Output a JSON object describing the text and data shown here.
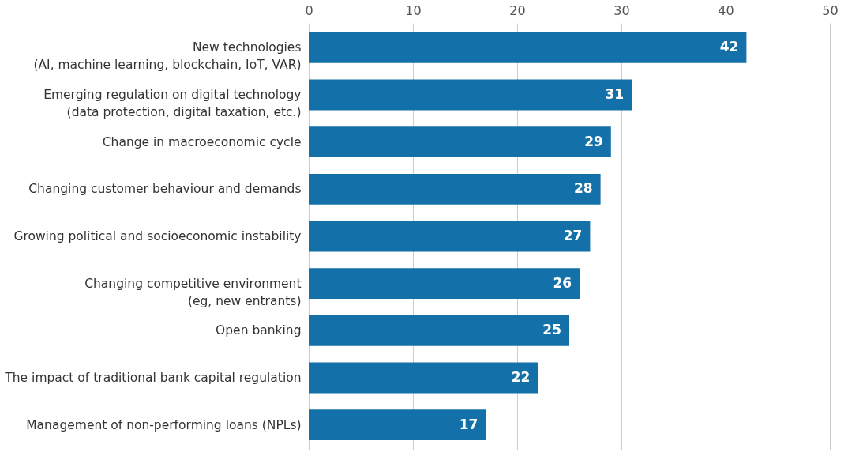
{
  "chart_data": {
    "type": "bar",
    "orientation": "horizontal",
    "categories": [
      "New technologies\n(AI, machine learning, blockchain, IoT, VAR)",
      "Emerging regulation on digital technology\n(data protection, digital taxation, etc.)",
      "Change in macroeconomic cycle",
      "Changing customer behaviour and demands",
      "Growing political and socioeconomic instability",
      "Changing competitive environment\n(eg, new entrants)",
      "Open banking",
      "The impact of traditional bank capital regulation",
      "Management of non-performing loans (NPLs)"
    ],
    "values": [
      42,
      31,
      29,
      28,
      27,
      26,
      25,
      22,
      17
    ],
    "color": "#1470a8",
    "xlim": [
      0,
      50
    ],
    "xticks": [
      0,
      10,
      20,
      30,
      40,
      50
    ],
    "grid": "x",
    "data_labels": true
  }
}
